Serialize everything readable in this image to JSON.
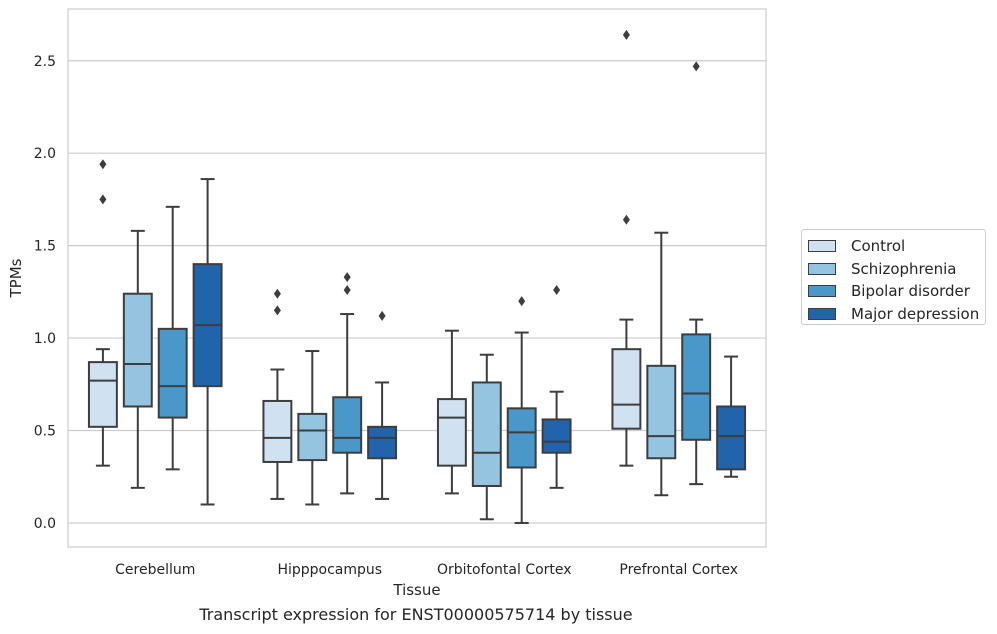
{
  "chart_data": {
    "type": "box",
    "title": "Transcript expression for ENST00000575714 by tissue",
    "xlabel": "Tissue",
    "ylabel": "TPMs",
    "ylim": [
      -0.13,
      2.78
    ],
    "yticks": [
      "0.0",
      "0.5",
      "1.0",
      "1.5",
      "2.0",
      "2.5"
    ],
    "ytick_values": [
      0.0,
      0.5,
      1.0,
      1.5,
      2.0,
      2.5
    ],
    "grid": "horizontal",
    "legend_position": "right",
    "categories": [
      "Cerebellum",
      "Hipppocampus",
      "Orbitofontal Cortex",
      "Prefrontal Cortex"
    ],
    "series": [
      {
        "name": "Control",
        "color": "#d0e1f2",
        "boxes": [
          {
            "whislo": 0.31,
            "q1": 0.52,
            "med": 0.77,
            "q3": 0.87,
            "whishi": 0.94,
            "fliers": [
              1.94,
              1.75
            ]
          },
          {
            "whislo": 0.13,
            "q1": 0.33,
            "med": 0.46,
            "q3": 0.66,
            "whishi": 0.83,
            "fliers": [
              1.24,
              1.15
            ]
          },
          {
            "whislo": 0.16,
            "q1": 0.31,
            "med": 0.57,
            "q3": 0.67,
            "whishi": 1.04,
            "fliers": []
          },
          {
            "whislo": 0.31,
            "q1": 0.51,
            "med": 0.64,
            "q3": 0.94,
            "whishi": 1.1,
            "fliers": [
              2.64,
              1.64
            ]
          }
        ]
      },
      {
        "name": "Schizophrenia",
        "color": "#94c4df",
        "boxes": [
          {
            "whislo": 0.19,
            "q1": 0.63,
            "med": 0.86,
            "q3": 1.24,
            "whishi": 1.58,
            "fliers": []
          },
          {
            "whislo": 0.1,
            "q1": 0.34,
            "med": 0.5,
            "q3": 0.59,
            "whishi": 0.93,
            "fliers": []
          },
          {
            "whislo": 0.02,
            "q1": 0.2,
            "med": 0.38,
            "q3": 0.76,
            "whishi": 0.91,
            "fliers": []
          },
          {
            "whislo": 0.15,
            "q1": 0.35,
            "med": 0.47,
            "q3": 0.85,
            "whishi": 1.57,
            "fliers": []
          }
        ]
      },
      {
        "name": "Bipolar disorder",
        "color": "#4a98c9",
        "boxes": [
          {
            "whislo": 0.29,
            "q1": 0.57,
            "med": 0.74,
            "q3": 1.05,
            "whishi": 1.71,
            "fliers": []
          },
          {
            "whislo": 0.16,
            "q1": 0.38,
            "med": 0.46,
            "q3": 0.68,
            "whishi": 1.13,
            "fliers": [
              1.33,
              1.26
            ]
          },
          {
            "whislo": 0.0,
            "q1": 0.3,
            "med": 0.49,
            "q3": 0.62,
            "whishi": 1.03,
            "fliers": [
              1.2
            ]
          },
          {
            "whislo": 0.21,
            "q1": 0.45,
            "med": 0.7,
            "q3": 1.02,
            "whishi": 1.1,
            "fliers": [
              2.47
            ]
          }
        ]
      },
      {
        "name": "Major depression",
        "color": "#2164ab",
        "boxes": [
          {
            "whislo": 0.1,
            "q1": 0.74,
            "med": 1.07,
            "q3": 1.4,
            "whishi": 1.86,
            "fliers": []
          },
          {
            "whislo": 0.13,
            "q1": 0.35,
            "med": 0.46,
            "q3": 0.52,
            "whishi": 0.76,
            "fliers": [
              1.12
            ]
          },
          {
            "whislo": 0.19,
            "q1": 0.38,
            "med": 0.44,
            "q3": 0.56,
            "whishi": 0.71,
            "fliers": [
              1.26
            ]
          },
          {
            "whislo": 0.25,
            "q1": 0.29,
            "med": 0.47,
            "q3": 0.63,
            "whishi": 0.9,
            "fliers": []
          }
        ]
      }
    ]
  }
}
